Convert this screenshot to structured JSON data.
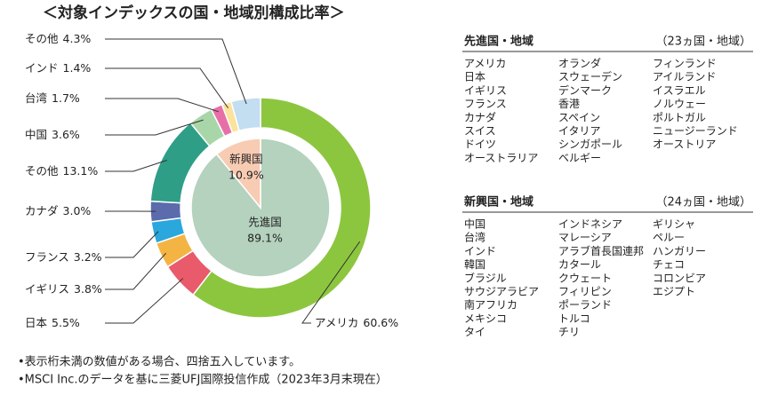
{
  "chart_data": {
    "type": "pie",
    "title": "＜対象インデックスの国・地域別構成比率＞",
    "inner": {
      "categories": [
        "先進国",
        "新興国"
      ],
      "values": [
        89.1,
        10.9
      ],
      "value_labels": [
        "89.1%",
        "10.9%"
      ],
      "colors": [
        "#b4d2be",
        "#f8cbb3"
      ]
    },
    "outer": {
      "categories": [
        "アメリカ",
        "日本",
        "イギリス",
        "フランス",
        "カナダ",
        "その他",
        "中国",
        "台湾",
        "インド",
        "その他"
      ],
      "values": [
        60.6,
        5.5,
        3.8,
        3.2,
        3.0,
        13.1,
        3.6,
        1.7,
        1.4,
        4.3
      ],
      "value_labels": [
        "60.6%",
        "5.5%",
        "3.8%",
        "3.2%",
        "3.0%",
        "13.1%",
        "3.6%",
        "1.7%",
        "1.4%",
        "4.3%"
      ],
      "colors": [
        "#8cc63f",
        "#e95a6b",
        "#f3b443",
        "#2aa7dd",
        "#5b6bab",
        "#2e9e87",
        "#a9d6a9",
        "#e76fa8",
        "#fbe39c",
        "#c3ddf1"
      ]
    },
    "lists": [
      {
        "title": "先進国・地域",
        "count": "（23ヵ国・地域）",
        "columns": [
          [
            "アメリカ",
            "日本",
            "イギリス",
            "フランス",
            "カナダ",
            "スイス",
            "ドイツ",
            "オーストラリア"
          ],
          [
            "オランダ",
            "スウェーデン",
            "デンマーク",
            "香港",
            "スペイン",
            "イタリア",
            "シンガポール",
            "ベルギー"
          ],
          [
            "フィンランド",
            "アイルランド",
            "イスラエル",
            "ノルウェー",
            "ポルトガル",
            "ニュージーランド",
            "オーストリア"
          ]
        ]
      },
      {
        "title": "新興国・地域",
        "count": "（24ヵ国・地域）",
        "columns": [
          [
            "中国",
            "台湾",
            "インド",
            "韓国",
            "ブラジル",
            "サウジアラビア",
            "南アフリカ",
            "メキシコ",
            "タイ"
          ],
          [
            "インドネシア",
            "マレーシア",
            "アラブ首長国連邦",
            "カタール",
            "クウェート",
            "フィリピン",
            "ポーランド",
            "トルコ",
            "チリ"
          ],
          [
            "ギリシャ",
            "ペルー",
            "ハンガリー",
            "チェコ",
            "コロンビア",
            "エジプト"
          ]
        ]
      }
    ],
    "notes": [
      "•表示桁未満の数値がある場合、四捨五入しています。",
      "•MSCI Inc.のデータを基に三菱UFJ国際投信作成（2023年3月末現在）"
    ]
  }
}
